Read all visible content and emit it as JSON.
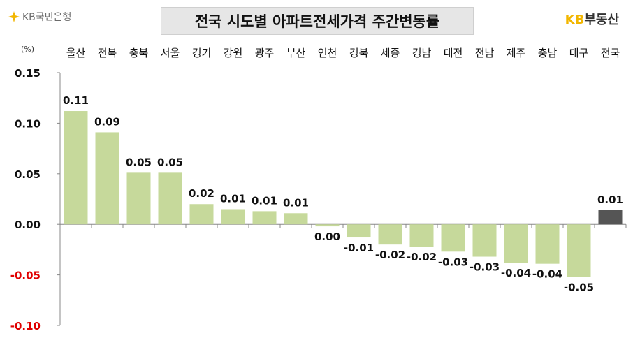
{
  "header": {
    "bank_logo_text": "KB국민은행",
    "title": "전국 시도별 아파트전세가격 주간변동률",
    "brand_kb": "KB",
    "brand_name": "부동산"
  },
  "colors": {
    "bar_region": "#c6d99b",
    "bar_national": "#555555",
    "negative_tick": "#e00000",
    "brand_accent": "#f2b600"
  },
  "chart_data": {
    "type": "bar",
    "title": "전국 시도별 아파트전세가격 주간변동률",
    "unit_label": "(%)",
    "categories": [
      "울산",
      "전북",
      "충북",
      "서울",
      "경기",
      "강원",
      "광주",
      "부산",
      "인천",
      "경북",
      "세종",
      "경남",
      "대전",
      "전남",
      "제주",
      "충남",
      "대구",
      "전국"
    ],
    "values": [
      0.112,
      0.091,
      0.051,
      0.051,
      0.02,
      0.015,
      0.013,
      0.011,
      -0.002,
      -0.013,
      -0.02,
      -0.022,
      -0.027,
      -0.032,
      -0.038,
      -0.039,
      -0.052,
      0.014
    ],
    "data_labels": [
      "0.11",
      "0.09",
      "0.05",
      "0.05",
      "0.02",
      "0.01",
      "0.01",
      "0.01",
      "0.00",
      "-0.01",
      "-0.02",
      "-0.02",
      "-0.03",
      "-0.03",
      "-0.04",
      "-0.04",
      "-0.05",
      "0.01"
    ],
    "ylim": [
      -0.1,
      0.15
    ],
    "y_ticks": [
      0.15,
      0.1,
      0.05,
      0.0,
      -0.05,
      -0.1
    ],
    "y_tick_labels": [
      "0.15",
      "0.10",
      "0.05",
      "0.00",
      "-0.05",
      "-0.10"
    ],
    "highlight_category": "전국",
    "legend": "none",
    "grid": false
  }
}
